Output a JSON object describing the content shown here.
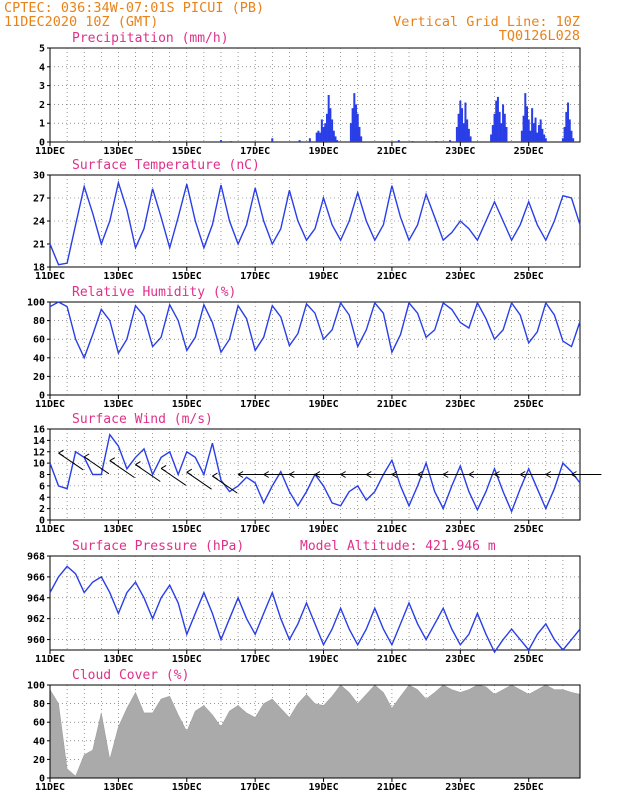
{
  "header": {
    "line1": "CPTEC:   036:34W-07:01S   PICUI (PB)",
    "line2": "11DEC2020 10Z (GMT)",
    "right1": "Vertical Grid Line: 10Z",
    "right2": "TQ0126L028"
  },
  "x_date_labels": [
    "11DEC",
    "13DEC",
    "15DEC",
    "17DEC",
    "19DEC",
    "21DEC",
    "23DEC",
    "25DEC"
  ],
  "colors": {
    "line": "#2a3ee8",
    "bar": "#2a3ee8",
    "cloud": "#aaaaaa",
    "title": "#e0308a",
    "header": "#e8821a"
  },
  "chart_data": [
    {
      "type": "bar",
      "title": "Precipitation (mm/h)",
      "ylim": [
        0,
        5
      ],
      "yticks": [
        0,
        1,
        2,
        3,
        4,
        5
      ],
      "x_range_days": [
        0,
        15.5
      ],
      "x": [
        2.2,
        3.2,
        5.0,
        5.3,
        6.5,
        7.3,
        7.6,
        7.8,
        7.85,
        7.9,
        7.95,
        8.0,
        8.05,
        8.1,
        8.15,
        8.2,
        8.25,
        8.3,
        8.35,
        8.4,
        8.8,
        8.85,
        8.9,
        8.95,
        9.0,
        9.05,
        9.1,
        10.2,
        10.6,
        11.3,
        11.7,
        11.9,
        11.95,
        12.0,
        12.05,
        12.1,
        12.15,
        12.2,
        12.25,
        12.3,
        12.9,
        12.95,
        13.0,
        13.05,
        13.1,
        13.15,
        13.2,
        13.25,
        13.3,
        13.35,
        13.8,
        13.85,
        13.9,
        13.95,
        14.0,
        14.05,
        14.1,
        14.15,
        14.2,
        14.25,
        14.3,
        14.35,
        14.4,
        14.45,
        14.5,
        15.0,
        15.05,
        15.1,
        15.15,
        15.2,
        15.25,
        15.3
      ],
      "values": [
        0.05,
        0.05,
        0.1,
        0.05,
        0.2,
        0.1,
        0.2,
        0.5,
        0.6,
        0.5,
        1.2,
        0.8,
        1.0,
        1.5,
        2.5,
        1.8,
        1.2,
        0.6,
        0.3,
        0.1,
        1.0,
        1.8,
        2.6,
        2.0,
        1.5,
        0.8,
        0.3,
        0.1,
        0.05,
        0.05,
        0.1,
        0.8,
        1.5,
        2.2,
        1.8,
        1.0,
        2.1,
        1.2,
        0.7,
        0.3,
        0.4,
        0.9,
        1.5,
        2.2,
        2.4,
        1.6,
        1.0,
        2.0,
        1.5,
        0.8,
        0.6,
        1.4,
        2.6,
        1.9,
        1.2,
        0.6,
        1.8,
        1.0,
        1.3,
        0.5,
        0.9,
        1.2,
        0.7,
        0.4,
        0.2,
        0.2,
        0.8,
        1.6,
        2.1,
        1.2,
        0.6,
        0.2
      ]
    },
    {
      "type": "line",
      "title": "Surface Temperature (nC)",
      "ylim": [
        18,
        30
      ],
      "yticks": [
        18,
        21,
        24,
        27,
        30
      ],
      "x_range_days": [
        0,
        15.5
      ],
      "x": [
        0.0,
        0.25,
        0.5,
        0.75,
        1.0,
        1.25,
        1.5,
        1.75,
        2.0,
        2.25,
        2.5,
        2.75,
        3.0,
        3.25,
        3.5,
        3.75,
        4.0,
        4.25,
        4.5,
        4.75,
        5.0,
        5.25,
        5.5,
        5.75,
        6.0,
        6.25,
        6.5,
        6.75,
        7.0,
        7.25,
        7.5,
        7.75,
        8.0,
        8.25,
        8.5,
        8.75,
        9.0,
        9.25,
        9.5,
        9.75,
        10.0,
        10.25,
        10.5,
        10.75,
        11.0,
        11.25,
        11.5,
        11.75,
        12.0,
        12.25,
        12.5,
        12.75,
        13.0,
        13.25,
        13.5,
        13.75,
        14.0,
        14.25,
        14.5,
        14.75,
        15.0,
        15.25,
        15.5
      ],
      "values": [
        21.0,
        18.3,
        18.5,
        23.5,
        28.5,
        25.0,
        21.0,
        24.0,
        29.0,
        25.5,
        20.5,
        23.0,
        28.2,
        24.5,
        20.5,
        24.5,
        28.8,
        24.0,
        20.5,
        23.5,
        28.7,
        24.0,
        21.0,
        23.5,
        28.3,
        24.0,
        21.0,
        23.0,
        28.0,
        24.0,
        21.5,
        23.0,
        27.0,
        23.5,
        21.5,
        24.0,
        27.7,
        24.0,
        21.5,
        23.5,
        28.6,
        24.5,
        21.5,
        23.5,
        27.5,
        24.5,
        21.5,
        22.5,
        24.0,
        23.0,
        21.5,
        24.0,
        26.5,
        24.0,
        21.5,
        23.5,
        26.5,
        23.5,
        21.5,
        24.0,
        27.3,
        27.0,
        23.5
      ]
    },
    {
      "type": "line",
      "title": "Relative Humidity (%)",
      "ylim": [
        0,
        100
      ],
      "yticks": [
        0,
        20,
        40,
        60,
        80,
        100
      ],
      "x_range_days": [
        0,
        15.5
      ],
      "x": [
        0.0,
        0.25,
        0.5,
        0.75,
        1.0,
        1.25,
        1.5,
        1.75,
        2.0,
        2.25,
        2.5,
        2.75,
        3.0,
        3.25,
        3.5,
        3.75,
        4.0,
        4.25,
        4.5,
        4.75,
        5.0,
        5.25,
        5.5,
        5.75,
        6.0,
        6.25,
        6.5,
        6.75,
        7.0,
        7.25,
        7.5,
        7.75,
        8.0,
        8.25,
        8.5,
        8.75,
        9.0,
        9.25,
        9.5,
        9.75,
        10.0,
        10.25,
        10.5,
        10.75,
        11.0,
        11.25,
        11.5,
        11.75,
        12.0,
        12.25,
        12.5,
        12.75,
        13.0,
        13.25,
        13.5,
        13.75,
        14.0,
        14.25,
        14.5,
        14.75,
        15.0,
        15.25,
        15.5
      ],
      "values": [
        95,
        100,
        95,
        60,
        40,
        65,
        92,
        80,
        45,
        60,
        96,
        85,
        52,
        62,
        97,
        80,
        48,
        62,
        97,
        78,
        46,
        60,
        96,
        82,
        48,
        62,
        96,
        84,
        53,
        66,
        98,
        88,
        60,
        70,
        99,
        86,
        52,
        70,
        99,
        88,
        46,
        65,
        99,
        88,
        62,
        70,
        99,
        92,
        78,
        72,
        99,
        82,
        60,
        70,
        99,
        86,
        56,
        68,
        99,
        86,
        58,
        52,
        79
      ]
    },
    {
      "type": "line",
      "title": "Surface Wind (m/s)",
      "ylim": [
        0,
        16
      ],
      "yticks": [
        0,
        2,
        4,
        6,
        8,
        10,
        12,
        14,
        16
      ],
      "x_range_days": [
        0,
        15.5
      ],
      "x": [
        0.0,
        0.25,
        0.5,
        0.75,
        1.0,
        1.25,
        1.5,
        1.75,
        2.0,
        2.25,
        2.5,
        2.75,
        3.0,
        3.25,
        3.5,
        3.75,
        4.0,
        4.25,
        4.5,
        4.75,
        5.0,
        5.25,
        5.5,
        5.75,
        6.0,
        6.25,
        6.5,
        6.75,
        7.0,
        7.25,
        7.5,
        7.75,
        8.0,
        8.25,
        8.5,
        8.75,
        9.0,
        9.25,
        9.5,
        9.75,
        10.0,
        10.25,
        10.5,
        10.75,
        11.0,
        11.25,
        11.5,
        11.75,
        12.0,
        12.25,
        12.5,
        12.75,
        13.0,
        13.25,
        13.5,
        13.75,
        14.0,
        14.25,
        14.5,
        14.75,
        15.0,
        15.25,
        15.5
      ],
      "values": [
        10.0,
        6.0,
        5.5,
        12.0,
        11.0,
        8.0,
        8.0,
        15.0,
        13.0,
        9.0,
        11.0,
        12.5,
        8.0,
        11.0,
        12.0,
        8.0,
        12.0,
        11.0,
        8.0,
        13.5,
        7.0,
        5.0,
        6.0,
        7.5,
        6.5,
        3.0,
        6.0,
        8.5,
        5.0,
        2.5,
        5.0,
        8.0,
        6.0,
        3.0,
        2.5,
        5.0,
        6.0,
        3.5,
        5.0,
        8.0,
        10.5,
        6.0,
        2.5,
        6.0,
        10.0,
        5.0,
        2.0,
        6.0,
        9.5,
        5.0,
        1.8,
        5.0,
        9.0,
        5.0,
        1.5,
        5.5,
        9.0,
        5.5,
        2.0,
        5.5,
        10.0,
        8.5,
        6.5
      ],
      "wind_barbs": "direction arrows along ~8 m/s"
    },
    {
      "type": "line",
      "title": "Surface Pressure (hPa)",
      "annotation": "Model Altitude: 421.946 m",
      "ylim": [
        959,
        968
      ],
      "yticks": [
        960,
        962,
        964,
        966,
        968
      ],
      "x_range_days": [
        0,
        15.5
      ],
      "x": [
        0.0,
        0.25,
        0.5,
        0.75,
        1.0,
        1.25,
        1.5,
        1.75,
        2.0,
        2.25,
        2.5,
        2.75,
        3.0,
        3.25,
        3.5,
        3.75,
        4.0,
        4.25,
        4.5,
        4.75,
        5.0,
        5.25,
        5.5,
        5.75,
        6.0,
        6.25,
        6.5,
        6.75,
        7.0,
        7.25,
        7.5,
        7.75,
        8.0,
        8.25,
        8.5,
        8.75,
        9.0,
        9.25,
        9.5,
        9.75,
        10.0,
        10.25,
        10.5,
        10.75,
        11.0,
        11.25,
        11.5,
        11.75,
        12.0,
        12.25,
        12.5,
        12.75,
        13.0,
        13.25,
        13.5,
        13.75,
        14.0,
        14.25,
        14.5,
        14.75,
        15.0,
        15.25,
        15.5
      ],
      "values": [
        964.5,
        966.0,
        967.0,
        966.3,
        964.5,
        965.5,
        966.0,
        964.5,
        962.5,
        964.5,
        965.5,
        964.0,
        962.0,
        964.0,
        965.2,
        963.5,
        960.5,
        962.5,
        964.5,
        962.5,
        960.0,
        962.0,
        964.0,
        962.0,
        960.5,
        962.5,
        964.5,
        962.0,
        960.0,
        961.5,
        963.5,
        961.5,
        959.5,
        961.0,
        963.0,
        961.0,
        959.5,
        961.0,
        963.0,
        961.0,
        959.5,
        961.5,
        963.5,
        961.5,
        960.0,
        961.5,
        963.0,
        961.0,
        959.5,
        960.5,
        962.5,
        960.5,
        958.8,
        960.0,
        961.0,
        960.0,
        959.0,
        960.5,
        961.5,
        960.0,
        959.0,
        960.0,
        961.0
      ]
    },
    {
      "type": "area",
      "title": "Cloud Cover (%)",
      "ylim": [
        0,
        100
      ],
      "yticks": [
        0,
        20,
        40,
        60,
        80,
        100
      ],
      "x_range_days": [
        0,
        15.5
      ],
      "x": [
        0.0,
        0.25,
        0.5,
        0.75,
        1.0,
        1.25,
        1.5,
        1.75,
        2.0,
        2.25,
        2.5,
        2.75,
        3.0,
        3.25,
        3.5,
        3.75,
        4.0,
        4.25,
        4.5,
        4.75,
        5.0,
        5.25,
        5.5,
        5.75,
        6.0,
        6.25,
        6.5,
        6.75,
        7.0,
        7.25,
        7.5,
        7.75,
        8.0,
        8.25,
        8.5,
        8.75,
        9.0,
        9.25,
        9.5,
        9.75,
        10.0,
        10.25,
        10.5,
        10.75,
        11.0,
        11.25,
        11.5,
        11.75,
        12.0,
        12.25,
        12.5,
        12.75,
        13.0,
        13.25,
        13.5,
        13.75,
        14.0,
        14.25,
        14.5,
        14.75,
        15.0,
        15.25,
        15.5
      ],
      "values": [
        95,
        80,
        10,
        2,
        25,
        30,
        70,
        20,
        55,
        75,
        92,
        70,
        70,
        85,
        88,
        68,
        50,
        72,
        78,
        68,
        55,
        72,
        78,
        70,
        65,
        80,
        85,
        75,
        65,
        80,
        90,
        80,
        78,
        88,
        100,
        92,
        80,
        90,
        100,
        92,
        75,
        88,
        100,
        95,
        85,
        92,
        100,
        95,
        92,
        95,
        100,
        98,
        90,
        95,
        100,
        95,
        90,
        95,
        100,
        95,
        95,
        92,
        90
      ]
    }
  ]
}
